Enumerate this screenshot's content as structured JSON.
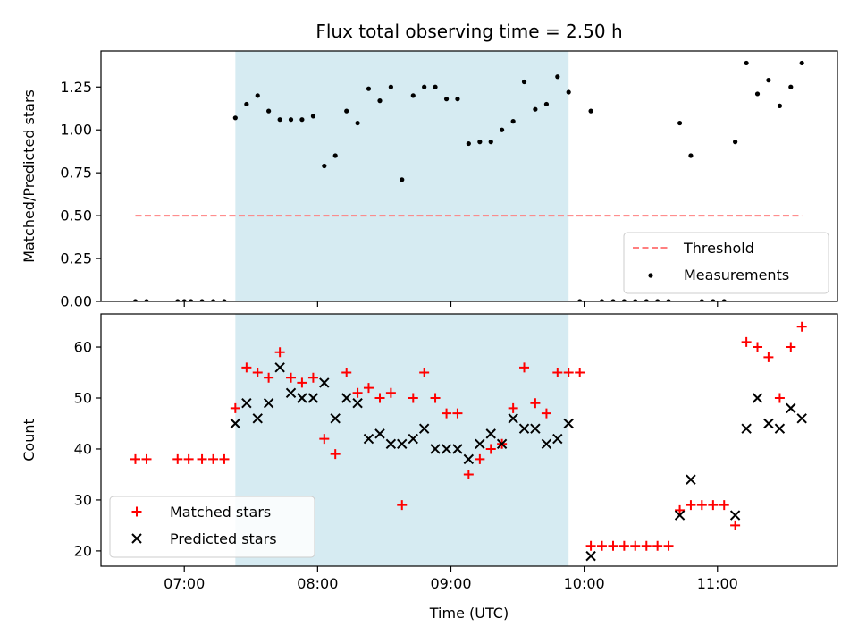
{
  "chart_data": [
    {
      "type": "scatter",
      "title": "Flux total observing time = 2.50 h",
      "ylabel": "Matched/Predicted stars",
      "xlabel": "",
      "xlim": [
        6.375,
        11.9
      ],
      "ylim": [
        0,
        1.46
      ],
      "yticks": [
        0.0,
        0.25,
        0.5,
        0.75,
        1.0,
        1.25
      ],
      "ytick_labels": [
        "0.00",
        "0.25",
        "0.50",
        "0.75",
        "1.00",
        "1.25"
      ],
      "xticks": [
        7,
        8,
        9,
        10,
        11
      ],
      "xtick_labels": [
        "",
        "",
        "",
        "",
        ""
      ],
      "shaded_interval": {
        "x_start": 7.383,
        "x_end": 9.883,
        "color": "#add8e6"
      },
      "threshold": {
        "name": "Threshold",
        "y": 0.5,
        "x_start": 6.633,
        "x_end": 11.633,
        "color": "#ff7f7f"
      },
      "legend_position": "lower-right",
      "series": [
        {
          "name": "Measurements",
          "color": "#000000",
          "marker": "dot",
          "x": [
            6.633,
            6.717,
            6.95,
            7.0,
            7.05,
            7.133,
            7.217,
            7.3,
            7.383,
            7.467,
            7.55,
            7.633,
            7.717,
            7.8,
            7.883,
            7.967,
            8.05,
            8.133,
            8.217,
            8.3,
            8.383,
            8.467,
            8.55,
            8.633,
            8.717,
            8.8,
            8.883,
            8.967,
            9.05,
            9.133,
            9.217,
            9.3,
            9.383,
            9.467,
            9.55,
            9.633,
            9.717,
            9.8,
            9.883,
            9.967,
            10.05,
            10.133,
            10.217,
            10.3,
            10.383,
            10.467,
            10.55,
            10.633,
            10.717,
            10.8,
            10.883,
            10.967,
            11.05,
            11.133,
            11.217,
            11.3,
            11.383,
            11.467,
            11.55,
            11.633
          ],
          "y": [
            0.0,
            0.0,
            0.0,
            0.0,
            0.0,
            0.0,
            0.0,
            0.0,
            1.07,
            1.15,
            1.2,
            1.11,
            1.06,
            1.06,
            1.06,
            1.08,
            0.79,
            0.85,
            1.11,
            1.04,
            1.24,
            1.17,
            1.25,
            0.71,
            1.2,
            1.25,
            1.25,
            1.18,
            1.18,
            0.92,
            0.93,
            0.93,
            1.0,
            1.05,
            1.28,
            1.12,
            1.15,
            1.31,
            1.22,
            0.0,
            1.11,
            0.0,
            0.0,
            0.0,
            0.0,
            0.0,
            0.0,
            0.0,
            1.04,
            0.85,
            0.0,
            0.0,
            0.0,
            0.93,
            1.39,
            1.21,
            1.29,
            1.14,
            1.25,
            1.39
          ]
        }
      ]
    },
    {
      "type": "scatter",
      "title": "",
      "ylabel": "Count",
      "xlabel": "Time (UTC)",
      "xlim": [
        6.375,
        11.9
      ],
      "ylim": [
        17,
        66.5
      ],
      "yticks": [
        20,
        30,
        40,
        50,
        60
      ],
      "ytick_labels": [
        "20",
        "30",
        "40",
        "50",
        "60"
      ],
      "xticks": [
        7,
        8,
        9,
        10,
        11
      ],
      "xtick_labels": [
        "07:00",
        "08:00",
        "09:00",
        "10:00",
        "11:00"
      ],
      "shaded_interval": {
        "x_start": 7.383,
        "x_end": 9.883,
        "color": "#add8e6"
      },
      "legend_position": "lower-left",
      "series": [
        {
          "name": "Matched stars",
          "color": "#ff0000",
          "marker": "plus",
          "x": [
            6.633,
            6.717,
            6.95,
            7.033,
            7.133,
            7.217,
            7.3,
            7.383,
            7.467,
            7.55,
            7.633,
            7.717,
            7.8,
            7.883,
            7.967,
            8.05,
            8.133,
            8.217,
            8.3,
            8.383,
            8.467,
            8.55,
            8.633,
            8.717,
            8.8,
            8.883,
            8.967,
            9.05,
            9.133,
            9.217,
            9.3,
            9.383,
            9.467,
            9.55,
            9.633,
            9.717,
            9.8,
            9.883,
            9.967,
            10.05,
            10.133,
            10.217,
            10.3,
            10.383,
            10.467,
            10.55,
            10.633,
            10.717,
            10.8,
            10.883,
            10.967,
            11.05,
            11.133,
            11.217,
            11.3,
            11.383,
            11.467,
            11.55,
            11.633
          ],
          "y": [
            38,
            38,
            38,
            38,
            38,
            38,
            38,
            48,
            56,
            55,
            54,
            59,
            54,
            53,
            54,
            42,
            39,
            55,
            51,
            52,
            50,
            51,
            29,
            50,
            55,
            50,
            47,
            47,
            35,
            38,
            40,
            41,
            48,
            56,
            49,
            47,
            55,
            55,
            55,
            21,
            21,
            21,
            21,
            21,
            21,
            21,
            21,
            28,
            29,
            29,
            29,
            29,
            25,
            61,
            60,
            58,
            50,
            60,
            64
          ]
        },
        {
          "name": "Predicted stars",
          "color": "#000000",
          "marker": "x",
          "x": [
            7.383,
            7.467,
            7.55,
            7.633,
            7.717,
            7.8,
            7.883,
            7.967,
            8.05,
            8.133,
            8.217,
            8.3,
            8.383,
            8.467,
            8.55,
            8.633,
            8.717,
            8.8,
            8.883,
            8.967,
            9.05,
            9.133,
            9.217,
            9.3,
            9.383,
            9.467,
            9.55,
            9.633,
            9.717,
            9.8,
            9.883,
            10.05,
            10.717,
            10.8,
            11.133,
            11.217,
            11.3,
            11.383,
            11.467,
            11.55,
            11.633
          ],
          "y": [
            45,
            49,
            46,
            49,
            56,
            51,
            50,
            50,
            53,
            46,
            50,
            49,
            42,
            43,
            41,
            41,
            42,
            44,
            40,
            40,
            40,
            38,
            41,
            43,
            41,
            46,
            44,
            44,
            41,
            42,
            45,
            19,
            27,
            34,
            27,
            44,
            50,
            45,
            44,
            48,
            46
          ]
        }
      ]
    }
  ]
}
